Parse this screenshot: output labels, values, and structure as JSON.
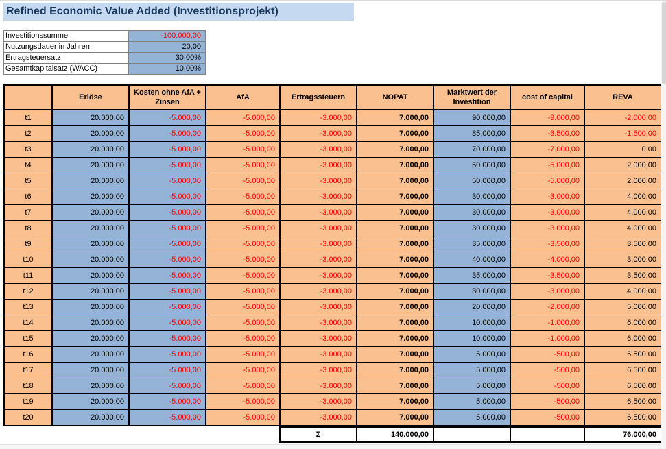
{
  "title": "Refined Economic Value Added (Investitionsprojekt)",
  "parameters": [
    {
      "label": "Investitionssumme",
      "value": "-100.000,00"
    },
    {
      "label": "Nutzungsdauer in Jahren",
      "value": "20,00"
    },
    {
      "label": "Ertragsteuersatz",
      "value": "30,00%"
    },
    {
      "label": "Gesamtkapitalsatz (WACC)",
      "value": "10,00%"
    }
  ],
  "table": {
    "columns": [
      "",
      "Erlöse",
      "Kosten ohne AfA + Zinsen",
      "AfA",
      "Ertragssteuern",
      "NOPAT",
      "Marktwert der Investition",
      "cost of capital",
      "REVA"
    ],
    "rows": [
      {
        "period": "t1",
        "erloese": "20.000,00",
        "kosten": "-5.000,00",
        "afa": "-5.000,00",
        "steuern": "-3.000,00",
        "nopat": "7.000,00",
        "marktwert": "90.000,00",
        "coc": "-9.000,00",
        "reva": "-2.000,00"
      },
      {
        "period": "t2",
        "erloese": "20.000,00",
        "kosten": "-5.000,00",
        "afa": "-5.000,00",
        "steuern": "-3.000,00",
        "nopat": "7.000,00",
        "marktwert": "85.000,00",
        "coc": "-8.500,00",
        "reva": "-1.500,00"
      },
      {
        "period": "t3",
        "erloese": "20.000,00",
        "kosten": "-5.000,00",
        "afa": "-5.000,00",
        "steuern": "-3.000,00",
        "nopat": "7.000,00",
        "marktwert": "70.000,00",
        "coc": "-7.000,00",
        "reva": "0,00"
      },
      {
        "period": "t4",
        "erloese": "20.000,00",
        "kosten": "-5.000,00",
        "afa": "-5.000,00",
        "steuern": "-3.000,00",
        "nopat": "7.000,00",
        "marktwert": "50.000,00",
        "coc": "-5.000,00",
        "reva": "2.000,00"
      },
      {
        "period": "t5",
        "erloese": "20.000,00",
        "kosten": "-5.000,00",
        "afa": "-5.000,00",
        "steuern": "-3.000,00",
        "nopat": "7.000,00",
        "marktwert": "50.000,00",
        "coc": "-5.000,00",
        "reva": "2.000,00"
      },
      {
        "period": "t6",
        "erloese": "20.000,00",
        "kosten": "-5.000,00",
        "afa": "-5.000,00",
        "steuern": "-3.000,00",
        "nopat": "7.000,00",
        "marktwert": "30.000,00",
        "coc": "-3.000,00",
        "reva": "4.000,00"
      },
      {
        "period": "t7",
        "erloese": "20.000,00",
        "kosten": "-5.000,00",
        "afa": "-5.000,00",
        "steuern": "-3.000,00",
        "nopat": "7.000,00",
        "marktwert": "30.000,00",
        "coc": "-3.000,00",
        "reva": "4.000,00"
      },
      {
        "period": "t8",
        "erloese": "20.000,00",
        "kosten": "-5.000,00",
        "afa": "-5.000,00",
        "steuern": "-3.000,00",
        "nopat": "7.000,00",
        "marktwert": "30.000,00",
        "coc": "-3.000,00",
        "reva": "4.000,00"
      },
      {
        "period": "t9",
        "erloese": "20.000,00",
        "kosten": "-5.000,00",
        "afa": "-5.000,00",
        "steuern": "-3.000,00",
        "nopat": "7.000,00",
        "marktwert": "35.000,00",
        "coc": "-3.500,00",
        "reva": "3.500,00"
      },
      {
        "period": "t10",
        "erloese": "20.000,00",
        "kosten": "-5.000,00",
        "afa": "-5.000,00",
        "steuern": "-3.000,00",
        "nopat": "7.000,00",
        "marktwert": "40.000,00",
        "coc": "-4.000,00",
        "reva": "3.000,00"
      },
      {
        "period": "t11",
        "erloese": "20.000,00",
        "kosten": "-5.000,00",
        "afa": "-5.000,00",
        "steuern": "-3.000,00",
        "nopat": "7.000,00",
        "marktwert": "35.000,00",
        "coc": "-3.500,00",
        "reva": "3.500,00"
      },
      {
        "period": "t12",
        "erloese": "20.000,00",
        "kosten": "-5.000,00",
        "afa": "-5.000,00",
        "steuern": "-3.000,00",
        "nopat": "7.000,00",
        "marktwert": "30.000,00",
        "coc": "-3.000,00",
        "reva": "4.000,00"
      },
      {
        "period": "t13",
        "erloese": "20.000,00",
        "kosten": "-5.000,00",
        "afa": "-5.000,00",
        "steuern": "-3.000,00",
        "nopat": "7.000,00",
        "marktwert": "20.000,00",
        "coc": "-2.000,00",
        "reva": "5.000,00"
      },
      {
        "period": "t14",
        "erloese": "20.000,00",
        "kosten": "-5.000,00",
        "afa": "-5.000,00",
        "steuern": "-3.000,00",
        "nopat": "7.000,00",
        "marktwert": "10.000,00",
        "coc": "-1.000,00",
        "reva": "6.000,00"
      },
      {
        "period": "t15",
        "erloese": "20.000,00",
        "kosten": "-5.000,00",
        "afa": "-5.000,00",
        "steuern": "-3.000,00",
        "nopat": "7.000,00",
        "marktwert": "10.000,00",
        "coc": "-1.000,00",
        "reva": "6.000,00"
      },
      {
        "period": "t16",
        "erloese": "20.000,00",
        "kosten": "-5.000,00",
        "afa": "-5.000,00",
        "steuern": "-3.000,00",
        "nopat": "7.000,00",
        "marktwert": "5.000,00",
        "coc": "-500,00",
        "reva": "6.500,00"
      },
      {
        "period": "t17",
        "erloese": "20.000,00",
        "kosten": "-5.000,00",
        "afa": "-5.000,00",
        "steuern": "-3.000,00",
        "nopat": "7.000,00",
        "marktwert": "5.000,00",
        "coc": "-500,00",
        "reva": "6.500,00"
      },
      {
        "period": "t18",
        "erloese": "20.000,00",
        "kosten": "-5.000,00",
        "afa": "-5.000,00",
        "steuern": "-3.000,00",
        "nopat": "7.000,00",
        "marktwert": "5.000,00",
        "coc": "-500,00",
        "reva": "6.500,00"
      },
      {
        "period": "t19",
        "erloese": "20.000,00",
        "kosten": "-5.000,00",
        "afa": "-5.000,00",
        "steuern": "-3.000,00",
        "nopat": "7.000,00",
        "marktwert": "5.000,00",
        "coc": "-500,00",
        "reva": "6.500,00"
      },
      {
        "period": "t20",
        "erloese": "20.000,00",
        "kosten": "-5.000,00",
        "afa": "-5.000,00",
        "steuern": "-3.000,00",
        "nopat": "7.000,00",
        "marktwert": "5.000,00",
        "coc": "-500,00",
        "reva": "6.500,00"
      }
    ],
    "sum": {
      "sigma_label": "Σ",
      "nopat_total": "140.000,00",
      "reva_total": "76.000,00"
    }
  },
  "colors": {
    "peach": "#FAC090",
    "blue": "#95B3D7",
    "title_bg": "#C5D9F1",
    "title_text": "#17375E",
    "negative": "#FF0000"
  }
}
